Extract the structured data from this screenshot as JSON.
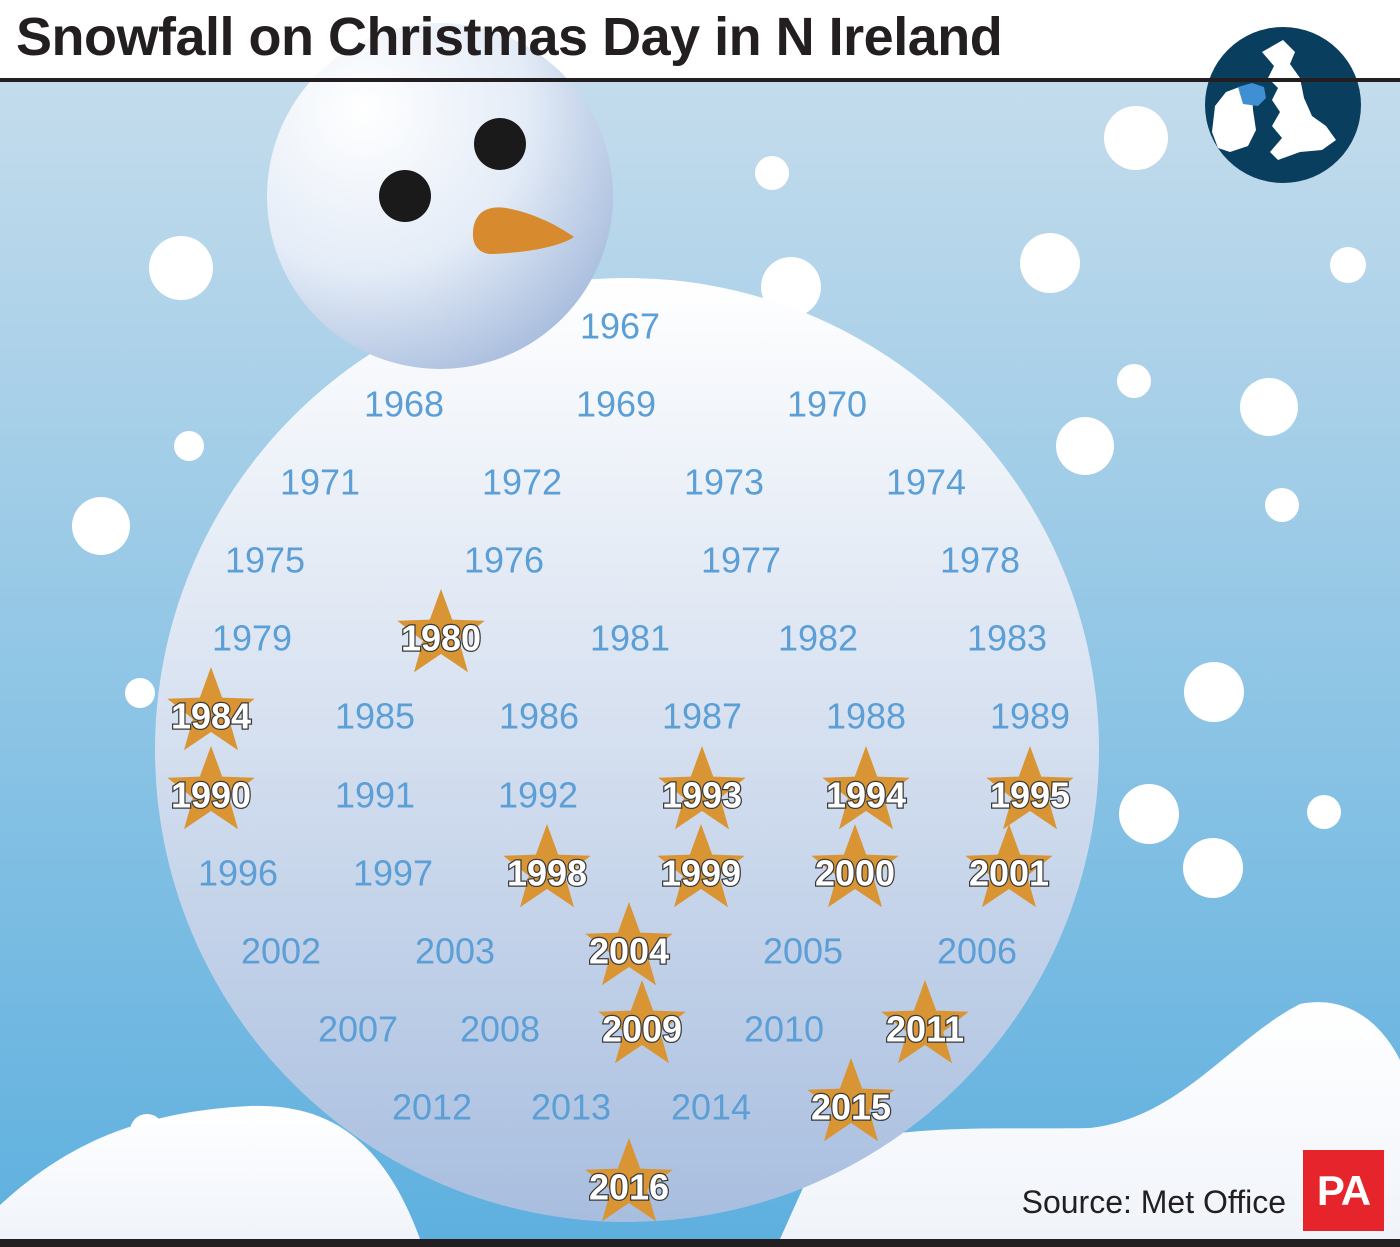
{
  "title": "Snowfall on Christmas Day in N Ireland",
  "source": "Source: Met Office",
  "logo_text": "PA",
  "colors": {
    "sky_top": "#c4dcec",
    "sky_bottom": "#5eb0df",
    "title_text": "#231f20",
    "year_plain": "#5b9fd6",
    "year_snow_text": "#ffffff",
    "star": "#d99434",
    "carrot": "#d88a2e",
    "map_disc": "#0a3e5f",
    "map_ni": "#3f8fd2",
    "logo_bg": "#e6242b"
  },
  "icons": [
    "uk-ireland-locator-map-icon",
    "snowman-head-icon",
    "star-icon"
  ],
  "rows": [
    [
      {
        "year": "1967",
        "snow": false
      }
    ],
    [
      {
        "year": "1968",
        "snow": false
      },
      {
        "year": "1969",
        "snow": false
      },
      {
        "year": "1970",
        "snow": false
      }
    ],
    [
      {
        "year": "1971",
        "snow": false
      },
      {
        "year": "1972",
        "snow": false
      },
      {
        "year": "1973",
        "snow": false
      },
      {
        "year": "1974",
        "snow": false
      }
    ],
    [
      {
        "year": "1975",
        "snow": false
      },
      {
        "year": "1976",
        "snow": false
      },
      {
        "year": "1977",
        "snow": false
      },
      {
        "year": "1978",
        "snow": false
      }
    ],
    [
      {
        "year": "1979",
        "snow": false
      },
      {
        "year": "1980",
        "snow": true
      },
      {
        "year": "1981",
        "snow": false
      },
      {
        "year": "1982",
        "snow": false
      },
      {
        "year": "1983",
        "snow": false
      }
    ],
    [
      {
        "year": "1984",
        "snow": true
      },
      {
        "year": "1985",
        "snow": false
      },
      {
        "year": "1986",
        "snow": false
      },
      {
        "year": "1987",
        "snow": false
      },
      {
        "year": "1988",
        "snow": false
      },
      {
        "year": "1989",
        "snow": false
      }
    ],
    [
      {
        "year": "1990",
        "snow": true
      },
      {
        "year": "1991",
        "snow": false
      },
      {
        "year": "1992",
        "snow": false
      },
      {
        "year": "1993",
        "snow": true
      },
      {
        "year": "1994",
        "snow": true
      },
      {
        "year": "1995",
        "snow": true
      }
    ],
    [
      {
        "year": "1996",
        "snow": false
      },
      {
        "year": "1997",
        "snow": false
      },
      {
        "year": "1998",
        "snow": true
      },
      {
        "year": "1999",
        "snow": true
      },
      {
        "year": "2000",
        "snow": true
      },
      {
        "year": "2001",
        "snow": true
      }
    ],
    [
      {
        "year": "2002",
        "snow": false
      },
      {
        "year": "2003",
        "snow": false
      },
      {
        "year": "2004",
        "snow": true
      },
      {
        "year": "2005",
        "snow": false
      },
      {
        "year": "2006",
        "snow": false
      }
    ],
    [
      {
        "year": "2007",
        "snow": false
      },
      {
        "year": "2008",
        "snow": false
      },
      {
        "year": "2009",
        "snow": true
      },
      {
        "year": "2010",
        "snow": false
      },
      {
        "year": "2011",
        "snow": true
      }
    ],
    [
      {
        "year": "2012",
        "snow": false
      },
      {
        "year": "2013",
        "snow": false
      },
      {
        "year": "2014",
        "snow": false
      },
      {
        "year": "2015",
        "snow": true
      }
    ],
    [
      {
        "year": "2016",
        "snow": true
      }
    ]
  ]
}
